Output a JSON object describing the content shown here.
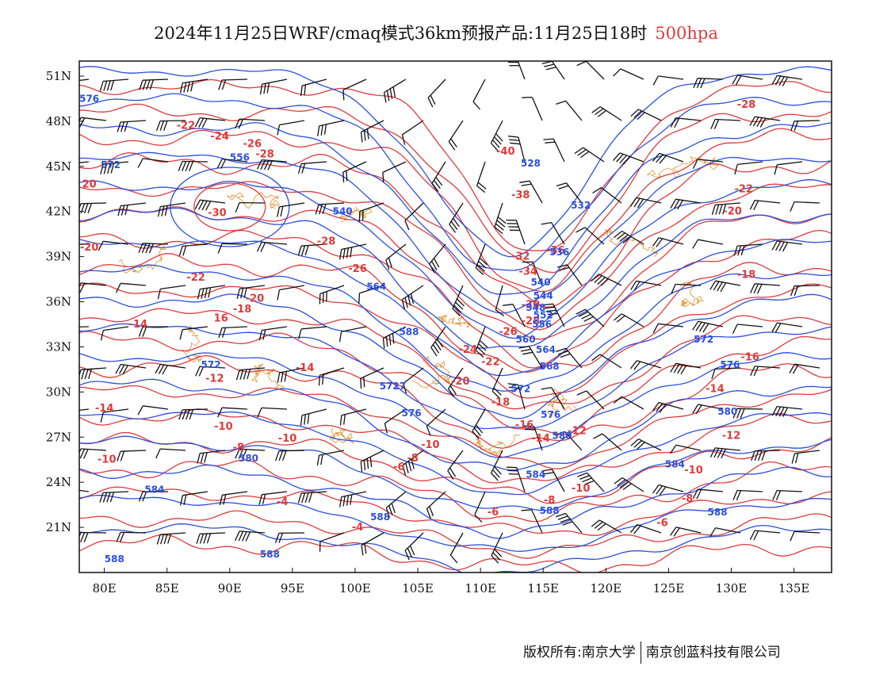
{
  "title": {
    "main": "2024年11月25日WRF/cmaq模式36km预报产品:11月25日18时",
    "level": "500hpa",
    "level_color": "#e03a3a"
  },
  "axes": {
    "lat_ticks": [
      "51N",
      "48N",
      "45N",
      "42N",
      "39N",
      "36N",
      "33N",
      "30N",
      "27N",
      "24N",
      "21N"
    ],
    "lat_values": [
      51,
      48,
      45,
      42,
      39,
      36,
      33,
      30,
      27,
      24,
      21
    ],
    "lon_ticks": [
      "80E",
      "85E",
      "90E",
      "95E",
      "100E",
      "105E",
      "110E",
      "115E",
      "120E",
      "125E",
      "130E",
      "135E"
    ],
    "lon_values": [
      80,
      85,
      90,
      95,
      100,
      105,
      110,
      115,
      120,
      125,
      130,
      135
    ],
    "lon_range": [
      78,
      138
    ],
    "lat_range": [
      18,
      52
    ]
  },
  "colors": {
    "geopotential": "#2a4fe0",
    "temperature": "#e03a3a",
    "boundaries": "#e0922e",
    "wind": "#111111"
  },
  "geopotential_labels": [
    {
      "text": "576",
      "lon": 78.8,
      "lat": 49.5
    },
    {
      "text": "572",
      "lon": 80.5,
      "lat": 45.1
    },
    {
      "text": "556",
      "lon": 90.8,
      "lat": 45.6
    },
    {
      "text": "540",
      "lon": 99.0,
      "lat": 42.0
    },
    {
      "text": "564",
      "lon": 101.7,
      "lat": 37.0
    },
    {
      "text": "588",
      "lon": 104.3,
      "lat": 34.0
    },
    {
      "text": "572",
      "lon": 88.5,
      "lat": 31.8
    },
    {
      "text": "5727",
      "lon": 103.0,
      "lat": 30.4
    },
    {
      "text": "576",
      "lon": 104.5,
      "lat": 28.6
    },
    {
      "text": "580",
      "lon": 91.5,
      "lat": 25.6
    },
    {
      "text": "584",
      "lon": 84.0,
      "lat": 23.5
    },
    {
      "text": "588",
      "lon": 102.0,
      "lat": 21.7
    },
    {
      "text": "588",
      "lon": 93.2,
      "lat": 19.2
    },
    {
      "text": "588",
      "lon": 80.8,
      "lat": 18.9
    },
    {
      "text": "528",
      "lon": 114.0,
      "lat": 45.2
    },
    {
      "text": "532",
      "lon": 118.0,
      "lat": 42.4
    },
    {
      "text": "536",
      "lon": 116.3,
      "lat": 39.3
    },
    {
      "text": "540",
      "lon": 114.8,
      "lat": 37.3
    },
    {
      "text": "544",
      "lon": 115.0,
      "lat": 36.4
    },
    {
      "text": "548",
      "lon": 114.4,
      "lat": 35.6
    },
    {
      "text": "552",
      "lon": 115.0,
      "lat": 35.1
    },
    {
      "text": "556",
      "lon": 114.9,
      "lat": 34.5
    },
    {
      "text": "560",
      "lon": 113.6,
      "lat": 33.5
    },
    {
      "text": "564",
      "lon": 115.2,
      "lat": 32.8
    },
    {
      "text": "568",
      "lon": 115.5,
      "lat": 31.7
    },
    {
      "text": "572",
      "lon": 113.2,
      "lat": 30.2
    },
    {
      "text": "576",
      "lon": 115.6,
      "lat": 28.5
    },
    {
      "text": "580",
      "lon": 116.5,
      "lat": 27.1
    },
    {
      "text": "584",
      "lon": 114.4,
      "lat": 24.5
    },
    {
      "text": "588",
      "lon": 115.5,
      "lat": 22.1
    },
    {
      "text": "572",
      "lon": 127.8,
      "lat": 33.5
    },
    {
      "text": "576",
      "lon": 129.9,
      "lat": 31.8
    },
    {
      "text": "580",
      "lon": 129.7,
      "lat": 28.7
    },
    {
      "text": "584",
      "lon": 125.5,
      "lat": 25.2
    },
    {
      "text": "588",
      "lon": 128.9,
      "lat": 22.0
    }
  ],
  "temperature_labels": [
    {
      "text": "-22",
      "lon": 86.5,
      "lat": 47.7
    },
    {
      "text": "-24",
      "lon": 89.2,
      "lat": 47.0
    },
    {
      "text": "-26",
      "lon": 91.8,
      "lat": 46.5
    },
    {
      "text": "-28",
      "lon": 92.8,
      "lat": 45.8
    },
    {
      "text": "20",
      "lon": 78.8,
      "lat": 43.8
    },
    {
      "text": "-30",
      "lon": 89.0,
      "lat": 41.9
    },
    {
      "text": "-28",
      "lon": 97.7,
      "lat": 40.0
    },
    {
      "text": "-26",
      "lon": 100.2,
      "lat": 38.2
    },
    {
      "text": "-20",
      "lon": 78.8,
      "lat": 39.6
    },
    {
      "text": "-22",
      "lon": 87.3,
      "lat": 37.6
    },
    {
      "text": "-20",
      "lon": 92.0,
      "lat": 36.2
    },
    {
      "text": "-18",
      "lon": 91.0,
      "lat": 35.5
    },
    {
      "text": "16",
      "lon": 89.3,
      "lat": 34.9
    },
    {
      "text": "-14",
      "lon": 82.7,
      "lat": 34.5
    },
    {
      "text": "-14",
      "lon": 96.0,
      "lat": 31.6
    },
    {
      "text": "-12",
      "lon": 88.8,
      "lat": 30.9
    },
    {
      "text": "-14",
      "lon": 80.0,
      "lat": 28.9
    },
    {
      "text": "-10",
      "lon": 89.5,
      "lat": 27.7
    },
    {
      "text": "-10",
      "lon": 94.6,
      "lat": 26.9
    },
    {
      "text": "-8",
      "lon": 90.7,
      "lat": 26.3
    },
    {
      "text": "-10",
      "lon": 80.2,
      "lat": 25.5
    },
    {
      "text": "-4",
      "lon": 94.2,
      "lat": 22.7
    },
    {
      "text": "-4",
      "lon": 100.2,
      "lat": 21.0
    },
    {
      "text": "-8",
      "lon": 104.6,
      "lat": 25.6
    },
    {
      "text": "-10",
      "lon": 106.0,
      "lat": 26.5
    },
    {
      "text": "-6",
      "lon": 103.5,
      "lat": 25.0
    },
    {
      "text": "-40",
      "lon": 112.0,
      "lat": 46.0
    },
    {
      "text": "-38",
      "lon": 113.2,
      "lat": 43.1
    },
    {
      "text": "-36",
      "lon": 116.0,
      "lat": 39.4
    },
    {
      "text": "-32",
      "lon": 113.2,
      "lat": 39.0
    },
    {
      "text": "-34",
      "lon": 113.8,
      "lat": 38.0
    },
    {
      "text": "-30",
      "lon": 114.0,
      "lat": 35.8
    },
    {
      "text": "-28",
      "lon": 114.0,
      "lat": 34.7
    },
    {
      "text": "-26",
      "lon": 112.2,
      "lat": 34.0
    },
    {
      "text": "-24",
      "lon": 109.0,
      "lat": 32.8
    },
    {
      "text": "-22",
      "lon": 110.8,
      "lat": 32.0
    },
    {
      "text": "-20",
      "lon": 108.4,
      "lat": 30.7
    },
    {
      "text": "-18",
      "lon": 111.6,
      "lat": 29.3
    },
    {
      "text": "-16",
      "lon": 113.5,
      "lat": 27.8
    },
    {
      "text": "-14",
      "lon": 114.8,
      "lat": 26.9
    },
    {
      "text": "-12",
      "lon": 117.7,
      "lat": 27.4
    },
    {
      "text": "-10",
      "lon": 118.0,
      "lat": 23.6
    },
    {
      "text": "-8",
      "lon": 115.5,
      "lat": 22.8
    },
    {
      "text": "-6",
      "lon": 111.0,
      "lat": 22.0
    },
    {
      "text": "-28",
      "lon": 131.2,
      "lat": 49.1
    },
    {
      "text": "-22",
      "lon": 131.0,
      "lat": 43.5
    },
    {
      "text": "-20",
      "lon": 130.1,
      "lat": 42.0
    },
    {
      "text": "-18",
      "lon": 131.2,
      "lat": 37.8
    },
    {
      "text": "-16",
      "lon": 131.5,
      "lat": 32.3
    },
    {
      "text": "-14",
      "lon": 128.7,
      "lat": 30.2
    },
    {
      "text": "-12",
      "lon": 130.0,
      "lat": 27.1
    },
    {
      "text": "-10",
      "lon": 127.0,
      "lat": 24.8
    },
    {
      "text": "-8",
      "lon": 126.5,
      "lat": 22.9
    },
    {
      "text": "-6",
      "lon": 124.5,
      "lat": 21.3
    }
  ],
  "copyright": {
    "left": "版权所有:南京大学",
    "right": "南京创蓝科技有限公司"
  }
}
